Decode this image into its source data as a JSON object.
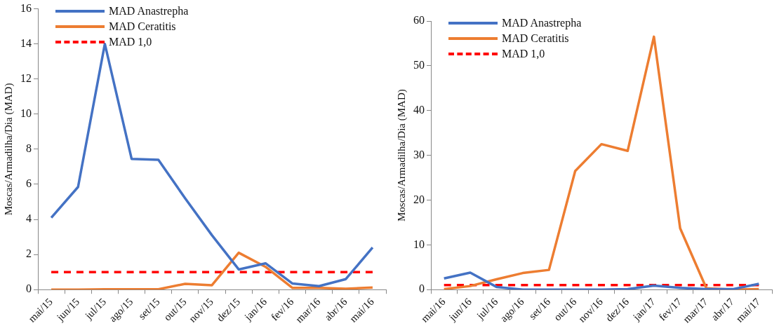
{
  "chart_data": [
    {
      "type": "line",
      "ylabel": "Moscas/Armadilha/Dia (MAD)",
      "categories": [
        "mai/15",
        "jun/15",
        "jul/15",
        "ago/15",
        "set/15",
        "out/15",
        "nov/15",
        "dez/15",
        "jan/16",
        "fev/16",
        "mar/16",
        "abr/16",
        "mai/16"
      ],
      "series": [
        {
          "name": "MAD Anastrepha",
          "color": "#4472c4",
          "values": [
            4.1,
            5.85,
            14.0,
            7.45,
            7.4,
            5.2,
            3.1,
            1.15,
            1.5,
            0.35,
            0.2,
            0.6,
            2.4
          ]
        },
        {
          "name": "MAD Ceratitis",
          "color": "#ed7d31",
          "values": [
            0,
            0,
            0.02,
            0.02,
            0.02,
            0.33,
            0.25,
            2.1,
            1.3,
            0.1,
            0.1,
            0.05,
            0.12
          ]
        },
        {
          "name": "MAD 1,0",
          "color": "#ff0000",
          "line_style": "dashed",
          "values": [
            1,
            1,
            1,
            1,
            1,
            1,
            1,
            1,
            1,
            1,
            1,
            1,
            1
          ]
        }
      ],
      "ylim": [
        0,
        16
      ],
      "yticks": [
        0,
        2,
        4,
        6,
        8,
        10,
        12,
        14,
        16
      ],
      "legend": "top left",
      "marker": "none"
    },
    {
      "type": "line",
      "ylabel": "Moscas/Armadilha/Dia (MAD)",
      "categories": [
        "mai/16",
        "jun/16",
        "jul/16",
        "ago/16",
        "set/16",
        "out/16",
        "nov/16",
        "dez/16",
        "jan/17",
        "fev/17",
        "mar/17",
        "abr/17",
        "mai/17"
      ],
      "series": [
        {
          "name": "MAD Anastrepha",
          "color": "#4472c4",
          "values": [
            2.5,
            3.8,
            0.6,
            0,
            0,
            0,
            0,
            0.1,
            0.9,
            0.4,
            0.1,
            0.1,
            1.3
          ]
        },
        {
          "name": "MAD Ceratitis",
          "color": "#ed7d31",
          "values": [
            0.1,
            0.8,
            2.3,
            3.7,
            4.4,
            26.5,
            32.5,
            31,
            56.5,
            13.7,
            0.3,
            0,
            0.1
          ]
        },
        {
          "name": "MAD 1,0",
          "color": "#ff0000",
          "line_style": "dashed",
          "values": [
            1,
            1,
            1,
            1,
            1,
            1,
            1,
            1,
            1,
            1,
            1,
            1,
            1
          ]
        }
      ],
      "ylim": [
        0,
        60
      ],
      "yticks": [
        0,
        10,
        20,
        30,
        40,
        50,
        60
      ],
      "legend": "top left",
      "marker": "none"
    }
  ]
}
